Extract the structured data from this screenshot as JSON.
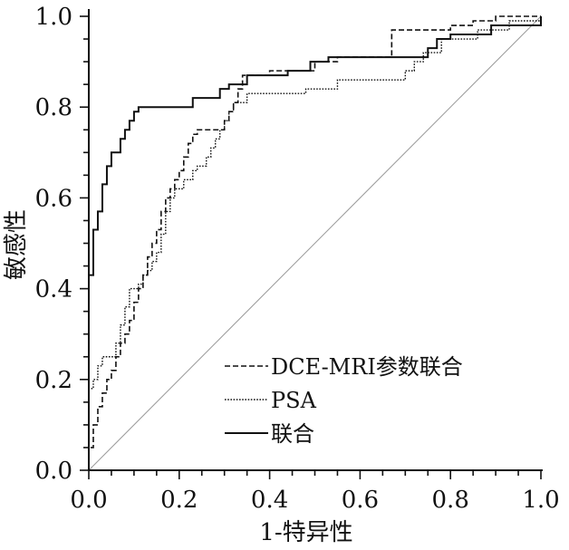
{
  "chart_data": {
    "type": "line",
    "xlabel": "1-特异性",
    "ylabel": "敏感性",
    "xlim": [
      0,
      1
    ],
    "ylim": [
      0,
      1
    ],
    "x_ticks": [
      "0.0",
      "0.2",
      "0.4",
      "0.6",
      "0.8",
      "1.0"
    ],
    "y_ticks": [
      "0.0",
      "0.2",
      "0.4",
      "0.6",
      "0.8",
      "1.0"
    ],
    "grid": false,
    "legend_position": "bottom-right",
    "reference_line": [
      [
        0,
        0
      ],
      [
        1,
        1
      ]
    ],
    "series": [
      {
        "name": "DCE-MRI参数联合",
        "style": "dashed",
        "points": [
          [
            0,
            0
          ],
          [
            0,
            0.05
          ],
          [
            0.01,
            0.05
          ],
          [
            0.01,
            0.1
          ],
          [
            0.02,
            0.1
          ],
          [
            0.02,
            0.14
          ],
          [
            0.03,
            0.14
          ],
          [
            0.03,
            0.17
          ],
          [
            0.04,
            0.17
          ],
          [
            0.04,
            0.2
          ],
          [
            0.05,
            0.2
          ],
          [
            0.05,
            0.22
          ],
          [
            0.06,
            0.22
          ],
          [
            0.06,
            0.25
          ],
          [
            0.07,
            0.25
          ],
          [
            0.07,
            0.28
          ],
          [
            0.08,
            0.28
          ],
          [
            0.08,
            0.3
          ],
          [
            0.09,
            0.3
          ],
          [
            0.09,
            0.33
          ],
          [
            0.1,
            0.33
          ],
          [
            0.1,
            0.37
          ],
          [
            0.11,
            0.37
          ],
          [
            0.11,
            0.4
          ],
          [
            0.12,
            0.4
          ],
          [
            0.12,
            0.43
          ],
          [
            0.13,
            0.43
          ],
          [
            0.13,
            0.47
          ],
          [
            0.14,
            0.47
          ],
          [
            0.14,
            0.5
          ],
          [
            0.15,
            0.5
          ],
          [
            0.15,
            0.53
          ],
          [
            0.16,
            0.53
          ],
          [
            0.16,
            0.57
          ],
          [
            0.17,
            0.57
          ],
          [
            0.17,
            0.6
          ],
          [
            0.18,
            0.6
          ],
          [
            0.18,
            0.62
          ],
          [
            0.19,
            0.62
          ],
          [
            0.19,
            0.64
          ],
          [
            0.2,
            0.64
          ],
          [
            0.2,
            0.66
          ],
          [
            0.21,
            0.66
          ],
          [
            0.21,
            0.69
          ],
          [
            0.22,
            0.69
          ],
          [
            0.22,
            0.72
          ],
          [
            0.23,
            0.72
          ],
          [
            0.23,
            0.74
          ],
          [
            0.24,
            0.74
          ],
          [
            0.24,
            0.75
          ],
          [
            0.3,
            0.75
          ],
          [
            0.3,
            0.77
          ],
          [
            0.31,
            0.77
          ],
          [
            0.31,
            0.79
          ],
          [
            0.32,
            0.79
          ],
          [
            0.32,
            0.81
          ],
          [
            0.33,
            0.81
          ],
          [
            0.33,
            0.84
          ],
          [
            0.34,
            0.84
          ],
          [
            0.34,
            0.87
          ],
          [
            0.4,
            0.87
          ],
          [
            0.4,
            0.88
          ],
          [
            0.5,
            0.88
          ],
          [
            0.5,
            0.9
          ],
          [
            0.55,
            0.9
          ],
          [
            0.55,
            0.91
          ],
          [
            0.67,
            0.91
          ],
          [
            0.67,
            0.97
          ],
          [
            0.8,
            0.97
          ],
          [
            0.8,
            0.98
          ],
          [
            0.85,
            0.98
          ],
          [
            0.85,
            0.99
          ],
          [
            0.9,
            0.99
          ],
          [
            0.9,
            1.0
          ],
          [
            1.0,
            1.0
          ]
        ]
      },
      {
        "name": "PSA",
        "style": "dotted",
        "points": [
          [
            0,
            0
          ],
          [
            0,
            0.18
          ],
          [
            0.01,
            0.18
          ],
          [
            0.01,
            0.2
          ],
          [
            0.02,
            0.2
          ],
          [
            0.02,
            0.23
          ],
          [
            0.03,
            0.23
          ],
          [
            0.03,
            0.25
          ],
          [
            0.06,
            0.25
          ],
          [
            0.06,
            0.28
          ],
          [
            0.07,
            0.28
          ],
          [
            0.07,
            0.32
          ],
          [
            0.08,
            0.32
          ],
          [
            0.08,
            0.36
          ],
          [
            0.09,
            0.36
          ],
          [
            0.09,
            0.4
          ],
          [
            0.11,
            0.4
          ],
          [
            0.11,
            0.41
          ],
          [
            0.12,
            0.41
          ],
          [
            0.12,
            0.43
          ],
          [
            0.13,
            0.43
          ],
          [
            0.13,
            0.44
          ],
          [
            0.14,
            0.44
          ],
          [
            0.14,
            0.46
          ],
          [
            0.15,
            0.46
          ],
          [
            0.15,
            0.48
          ],
          [
            0.16,
            0.48
          ],
          [
            0.16,
            0.52
          ],
          [
            0.17,
            0.52
          ],
          [
            0.17,
            0.57
          ],
          [
            0.18,
            0.57
          ],
          [
            0.18,
            0.6
          ],
          [
            0.19,
            0.6
          ],
          [
            0.19,
            0.62
          ],
          [
            0.21,
            0.62
          ],
          [
            0.21,
            0.64
          ],
          [
            0.23,
            0.64
          ],
          [
            0.23,
            0.66
          ],
          [
            0.24,
            0.66
          ],
          [
            0.24,
            0.67
          ],
          [
            0.26,
            0.67
          ],
          [
            0.26,
            0.69
          ],
          [
            0.27,
            0.69
          ],
          [
            0.27,
            0.71
          ],
          [
            0.28,
            0.71
          ],
          [
            0.28,
            0.73
          ],
          [
            0.29,
            0.73
          ],
          [
            0.29,
            0.75
          ],
          [
            0.3,
            0.75
          ],
          [
            0.3,
            0.77
          ],
          [
            0.31,
            0.77
          ],
          [
            0.31,
            0.79
          ],
          [
            0.32,
            0.79
          ],
          [
            0.32,
            0.81
          ],
          [
            0.35,
            0.81
          ],
          [
            0.35,
            0.83
          ],
          [
            0.48,
            0.83
          ],
          [
            0.48,
            0.84
          ],
          [
            0.55,
            0.84
          ],
          [
            0.55,
            0.86
          ],
          [
            0.7,
            0.86
          ],
          [
            0.7,
            0.88
          ],
          [
            0.72,
            0.88
          ],
          [
            0.72,
            0.9
          ],
          [
            0.74,
            0.9
          ],
          [
            0.74,
            0.92
          ],
          [
            0.78,
            0.92
          ],
          [
            0.78,
            0.95
          ],
          [
            0.86,
            0.95
          ],
          [
            0.86,
            0.97
          ],
          [
            0.93,
            0.97
          ],
          [
            0.93,
            0.99
          ],
          [
            1.0,
            0.99
          ],
          [
            1.0,
            1.0
          ]
        ]
      },
      {
        "name": "联合",
        "style": "solid",
        "points": [
          [
            0,
            0
          ],
          [
            0,
            0.43
          ],
          [
            0.01,
            0.43
          ],
          [
            0.01,
            0.53
          ],
          [
            0.02,
            0.53
          ],
          [
            0.02,
            0.57
          ],
          [
            0.03,
            0.57
          ],
          [
            0.03,
            0.63
          ],
          [
            0.04,
            0.63
          ],
          [
            0.04,
            0.67
          ],
          [
            0.05,
            0.67
          ],
          [
            0.05,
            0.7
          ],
          [
            0.07,
            0.7
          ],
          [
            0.07,
            0.73
          ],
          [
            0.08,
            0.73
          ],
          [
            0.08,
            0.75
          ],
          [
            0.09,
            0.75
          ],
          [
            0.09,
            0.77
          ],
          [
            0.1,
            0.77
          ],
          [
            0.1,
            0.79
          ],
          [
            0.11,
            0.79
          ],
          [
            0.11,
            0.8
          ],
          [
            0.23,
            0.8
          ],
          [
            0.23,
            0.82
          ],
          [
            0.29,
            0.82
          ],
          [
            0.29,
            0.84
          ],
          [
            0.31,
            0.84
          ],
          [
            0.31,
            0.85
          ],
          [
            0.35,
            0.85
          ],
          [
            0.35,
            0.87
          ],
          [
            0.44,
            0.87
          ],
          [
            0.44,
            0.88
          ],
          [
            0.49,
            0.88
          ],
          [
            0.49,
            0.9
          ],
          [
            0.53,
            0.9
          ],
          [
            0.53,
            0.91
          ],
          [
            0.75,
            0.91
          ],
          [
            0.75,
            0.93
          ],
          [
            0.77,
            0.93
          ],
          [
            0.77,
            0.95
          ],
          [
            0.8,
            0.95
          ],
          [
            0.8,
            0.96
          ],
          [
            0.89,
            0.96
          ],
          [
            0.89,
            0.98
          ],
          [
            1.0,
            0.98
          ],
          [
            1.0,
            1.0
          ]
        ]
      }
    ]
  }
}
